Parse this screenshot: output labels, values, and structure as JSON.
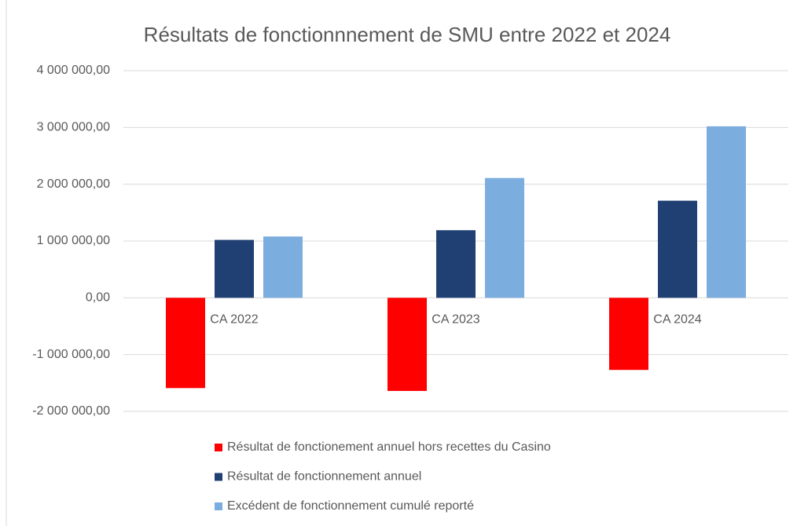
{
  "chart_data": {
    "type": "bar",
    "title": "Résultats de fonctionnnement de SMU entre 2022 et 2024",
    "categories": [
      "CA 2022",
      "CA 2023",
      "CA 2024"
    ],
    "series": [
      {
        "name": "Résultat de fonctionement annuel hors recettes du Casino",
        "color": "#ff0000",
        "values": [
          -1590000,
          -1640000,
          -1270000
        ]
      },
      {
        "name": "Résultat de fonctionnement annuel",
        "color": "#203f73",
        "values": [
          1020000,
          1190000,
          1710000
        ]
      },
      {
        "name": "Excédent de fonctionnement cumulé reporté",
        "color": "#7caddf",
        "values": [
          1080000,
          2110000,
          3020000
        ]
      }
    ],
    "ylim": [
      -2000000,
      4000000
    ],
    "yticks": [
      {
        "value": -2000000,
        "label": "-2 000 000,00"
      },
      {
        "value": -1000000,
        "label": "-1 000 000,00"
      },
      {
        "value": 0,
        "label": "0,00"
      },
      {
        "value": 1000000,
        "label": "1 000 000,00"
      },
      {
        "value": 2000000,
        "label": "2 000 000,00"
      },
      {
        "value": 3000000,
        "label": "3 000 000,00"
      },
      {
        "value": 4000000,
        "label": "4 000 000,00"
      }
    ],
    "grid": true,
    "legend": "bottom"
  }
}
